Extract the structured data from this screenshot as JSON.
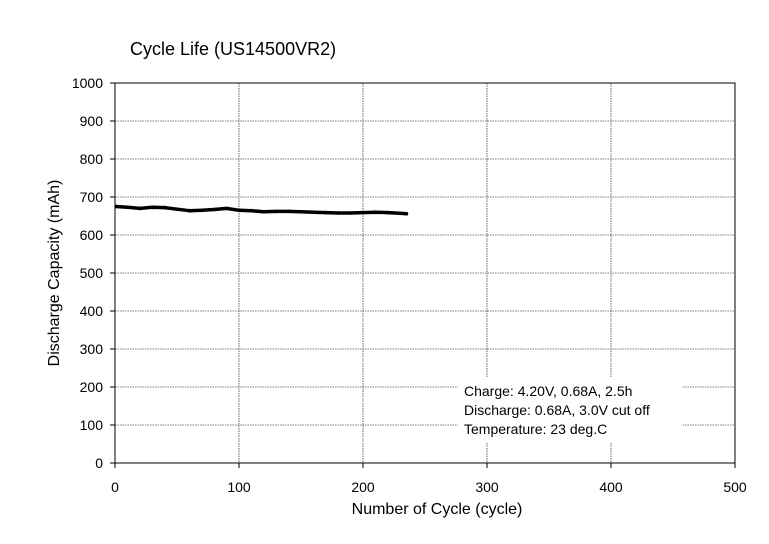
{
  "chart_data": {
    "type": "line",
    "title": "Cycle Life (US14500VR2)",
    "xlabel": "Number of Cycle (cycle)",
    "ylabel": "Discharge Capacity (mAh)",
    "xlim": [
      0,
      500
    ],
    "ylim": [
      0,
      1000
    ],
    "xticks": [
      "0",
      "100",
      "200",
      "300",
      "400",
      "500"
    ],
    "yticks": [
      "0",
      "100",
      "200",
      "300",
      "400",
      "500",
      "600",
      "700",
      "800",
      "900",
      "1000"
    ],
    "grid": true,
    "legend": "none",
    "line_color": "#000000",
    "series": [
      {
        "x": [
          1,
          10,
          20,
          30,
          40,
          50,
          60,
          70,
          80,
          90,
          100,
          110,
          120,
          130,
          140,
          150,
          160,
          170,
          180,
          190,
          200,
          210,
          220,
          230,
          235
        ],
        "y": [
          675,
          673,
          670,
          673,
          672,
          668,
          664,
          665,
          667,
          670,
          665,
          664,
          661,
          662,
          662,
          661,
          660,
          659,
          658,
          658,
          659,
          660,
          659,
          657,
          656
        ]
      }
    ],
    "annotations": [
      "Charge: 4.20V, 0.68A, 2.5h",
      "Discharge: 0.68A, 3.0V cut off",
      "Temperature: 23 deg.C"
    ]
  }
}
